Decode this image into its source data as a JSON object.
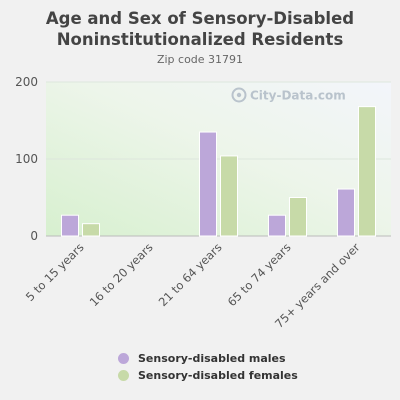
{
  "title": "Age and Sex of Sensory-Disabled Noninstitutionalized Residents",
  "subtitle": "Zip code 31791",
  "watermark": "City-Data.com",
  "colors": {
    "males": "#bca7d9",
    "females": "#c7daa8"
  },
  "chart_data": {
    "type": "bar",
    "title": "Age and Sex of Sensory-Disabled Noninstitutionalized Residents",
    "subtitle": "Zip code 31791",
    "categories": [
      "5 to 15 years",
      "16 to 20 years",
      "21 to 64 years",
      "65 to 74 years",
      "75+ years and over"
    ],
    "series": [
      {
        "name": "Sensory-disabled males",
        "values": [
          27,
          0,
          135,
          27,
          61
        ]
      },
      {
        "name": "Sensory-disabled females",
        "values": [
          16,
          0,
          104,
          50,
          168
        ]
      }
    ],
    "yticks": [
      0,
      100,
      200
    ],
    "ylim": [
      0,
      200
    ],
    "grid": true,
    "legend": "bottom"
  }
}
